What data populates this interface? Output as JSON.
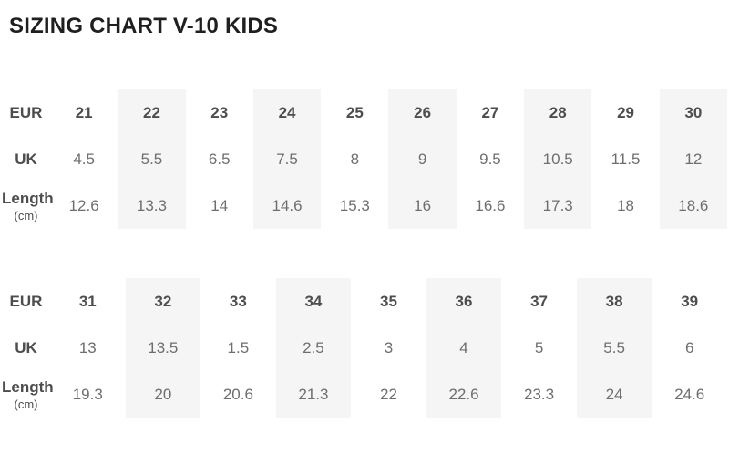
{
  "title": "SIZING CHART V-10 KIDS",
  "colors": {
    "title": "#1f1f1f",
    "label": "#4d4d4d",
    "value": "#6e6e6e",
    "stripe": "#f5f5f5"
  },
  "tables": [
    {
      "rows": [
        {
          "label": "EUR",
          "unit": "",
          "emphasis": true,
          "values": [
            "21",
            "22",
            "23",
            "24",
            "25",
            "26",
            "27",
            "28",
            "29",
            "30"
          ]
        },
        {
          "label": "UK",
          "unit": "",
          "emphasis": false,
          "values": [
            "4.5",
            "5.5",
            "6.5",
            "7.5",
            "8",
            "9",
            "9.5",
            "10.5",
            "11.5",
            "12"
          ]
        },
        {
          "label": "Length",
          "unit": "(cm)",
          "emphasis": false,
          "values": [
            "12.6",
            "13.3",
            "14",
            "14.6",
            "15.3",
            "16",
            "16.6",
            "17.3",
            "18",
            "18.6"
          ]
        }
      ]
    },
    {
      "rows": [
        {
          "label": "EUR",
          "unit": "",
          "emphasis": true,
          "values": [
            "31",
            "32",
            "33",
            "34",
            "35",
            "36",
            "37",
            "38",
            "39"
          ]
        },
        {
          "label": "UK",
          "unit": "",
          "emphasis": false,
          "values": [
            "13",
            "13.5",
            "1.5",
            "2.5",
            "3",
            "4",
            "5",
            "5.5",
            "6"
          ]
        },
        {
          "label": "Length",
          "unit": "(cm)",
          "emphasis": false,
          "values": [
            "19.3",
            "20",
            "20.6",
            "21.3",
            "22",
            "22.6",
            "23.3",
            "24",
            "24.6"
          ]
        }
      ]
    }
  ]
}
